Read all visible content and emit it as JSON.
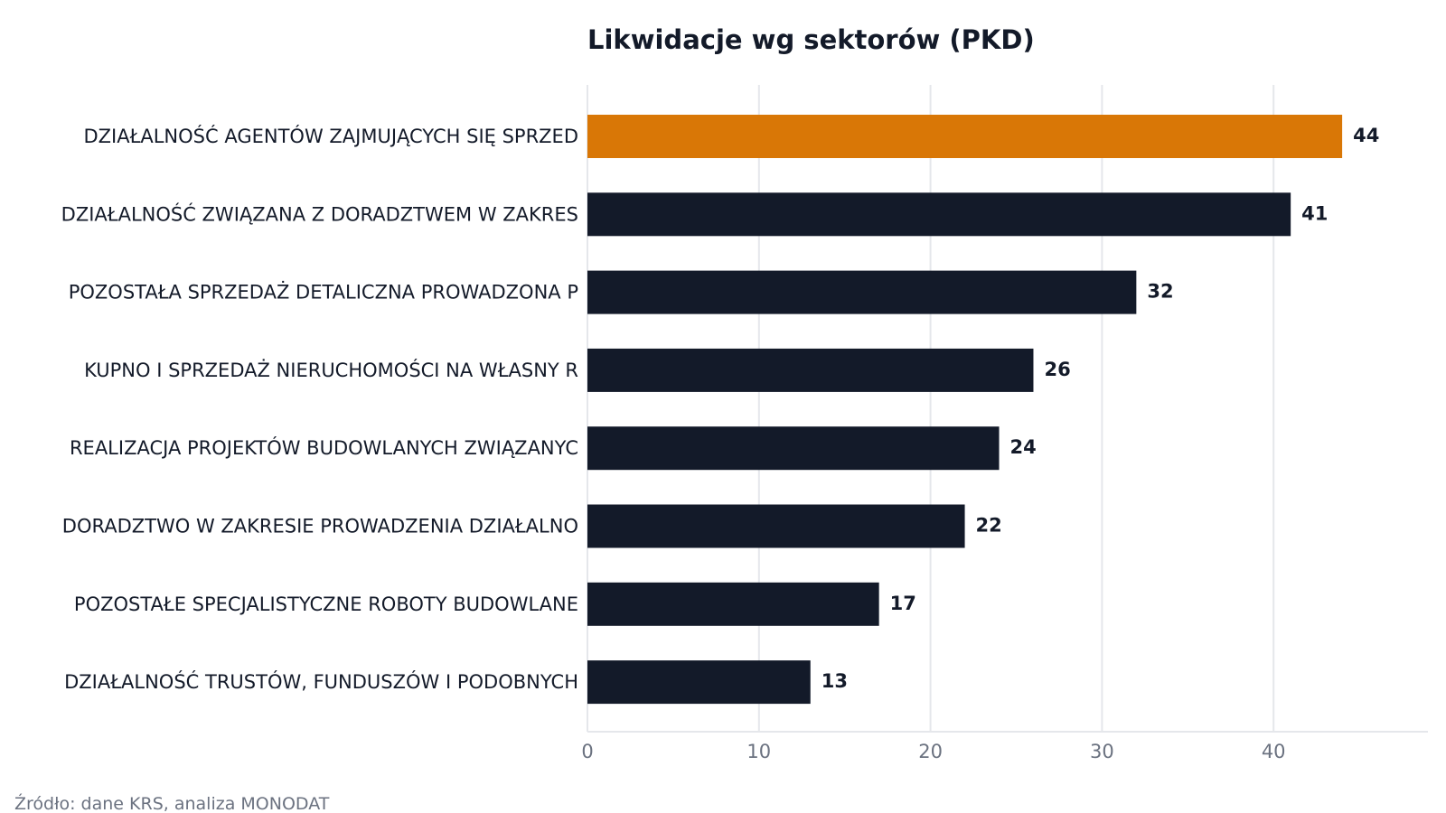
{
  "chart_data": {
    "type": "bar",
    "orientation": "horizontal",
    "title": "Likwidacje wg sektorów (PKD)",
    "xlabel": "",
    "ylabel": "",
    "categories": [
      "DZIAŁALNOŚĆ AGENTÓW ZAJMUJĄCYCH SIĘ SPRZED",
      "DZIAŁALNOŚĆ ZWIĄZANA Z DORADZTWEM W ZAKRES",
      "POZOSTAŁA SPRZEDAŻ DETALICZNA PROWADZONA P",
      "KUPNO I SPRZEDAŻ NIERUCHOMOŚCI NA WŁASNY R",
      "REALIZACJA PROJEKTÓW BUDOWLANYCH ZWIĄZANYC",
      "DORADZTWO W ZAKRESIE PROWADZENIA DZIAŁALNO",
      "POZOSTAŁE SPECJALISTYCZNE ROBOTY BUDOWLANE",
      "DZIAŁALNOŚĆ TRUSTÓW, FUNDUSZÓW I PODOBNYCH"
    ],
    "values": [
      44,
      41,
      32,
      26,
      24,
      22,
      17,
      13
    ],
    "xlim": [
      0,
      49
    ],
    "xticks": [
      0,
      10,
      20,
      30,
      40
    ],
    "grid": "vertical",
    "highlight_index": 0,
    "colors": {
      "highlight": "#d97706",
      "bar": "#131a29",
      "grid": "#e5e7eb",
      "tick_text": "#6b7280",
      "text": "#131a29"
    }
  },
  "source": "Źródło: dane KRS, analiza MONODAT"
}
